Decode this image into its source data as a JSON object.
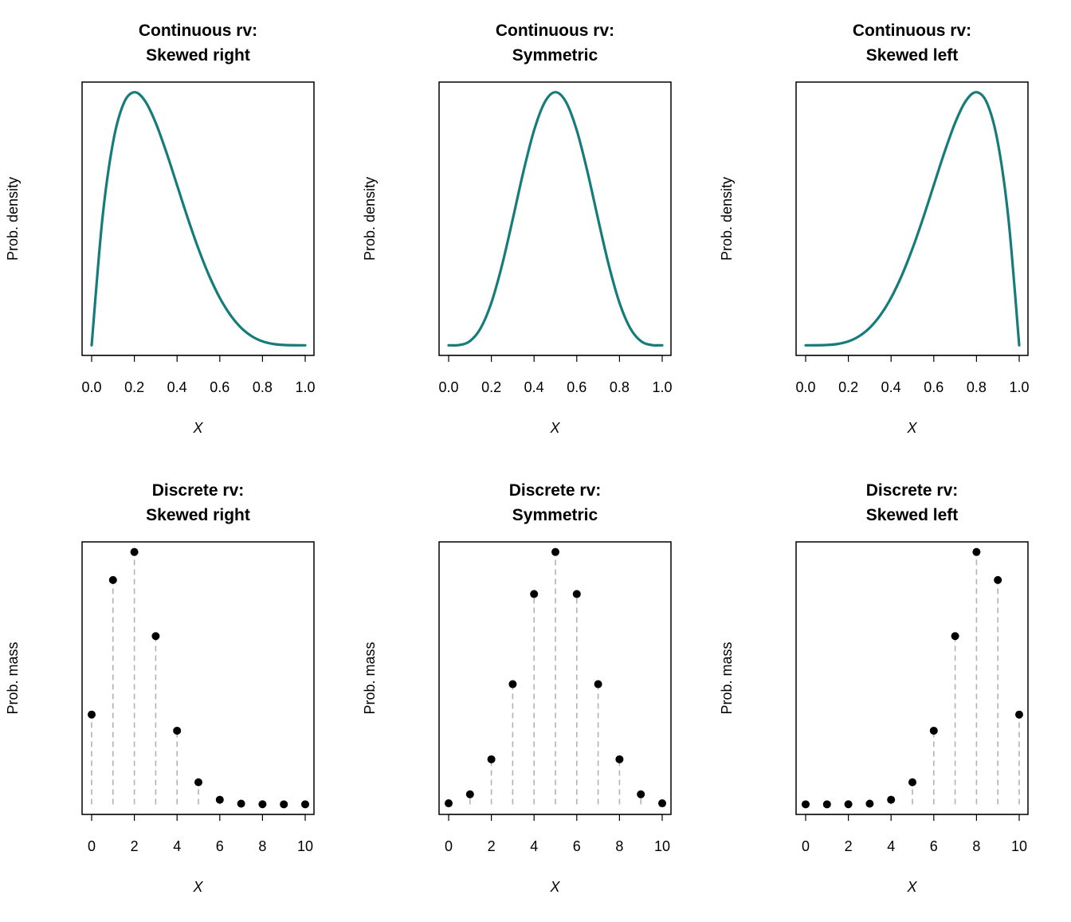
{
  "colors": {
    "curve": "#167c7a",
    "points": "#000000",
    "stems": "#b3b3b3",
    "frame": "#000000"
  },
  "chart_data": [
    {
      "type": "line",
      "title_lines": [
        "Continuous rv:",
        "Skewed right"
      ],
      "xlabel": "X",
      "ylabel": "Prob. density",
      "xlim": [
        0,
        1
      ],
      "xticks": [
        "0.0",
        "0.2",
        "0.4",
        "0.6",
        "0.8",
        "1.0"
      ],
      "y_ticks_shown": false,
      "x": [
        0,
        0.05,
        0.1,
        0.15,
        0.2,
        0.25,
        0.3,
        0.35,
        0.4,
        0.45,
        0.5,
        0.55,
        0.6,
        0.65,
        0.7,
        0.75,
        0.8,
        0.85,
        0.9,
        0.95,
        1
      ],
      "y": [
        0,
        1.222,
        1.968,
        2.349,
        2.458,
        2.373,
        2.161,
        1.874,
        1.555,
        1.235,
        0.938,
        0.677,
        0.461,
        0.293,
        0.17,
        0.088,
        0.038,
        0.013,
        0.003,
        0.0002,
        0
      ]
    },
    {
      "type": "line",
      "title_lines": [
        "Continuous rv:",
        "Symmetric"
      ],
      "xlabel": "X",
      "ylabel": "Prob. density",
      "xlim": [
        0,
        1
      ],
      "xticks": [
        "0.0",
        "0.2",
        "0.4",
        "0.6",
        "0.8",
        "1.0"
      ],
      "y_ticks_shown": false,
      "x": [
        0,
        0.05,
        0.1,
        0.15,
        0.2,
        0.25,
        0.3,
        0.35,
        0.4,
        0.45,
        0.5,
        0.55,
        0.6,
        0.65,
        0.7,
        0.75,
        0.8,
        0.85,
        0.9,
        0.95,
        1
      ],
      "y": [
        0,
        0.003,
        0.041,
        0.167,
        0.413,
        0.779,
        1.225,
        1.688,
        2.09,
        2.364,
        2.461,
        2.364,
        2.09,
        1.688,
        1.225,
        0.779,
        0.413,
        0.167,
        0.041,
        0.003,
        0
      ]
    },
    {
      "type": "line",
      "title_lines": [
        "Continuous rv:",
        "Skewed left"
      ],
      "xlabel": "X",
      "ylabel": "Prob. density",
      "xlim": [
        0,
        1
      ],
      "xticks": [
        "0.0",
        "0.2",
        "0.4",
        "0.6",
        "0.8",
        "1.0"
      ],
      "y_ticks_shown": false,
      "x": [
        0,
        0.05,
        0.1,
        0.15,
        0.2,
        0.25,
        0.3,
        0.35,
        0.4,
        0.45,
        0.5,
        0.55,
        0.6,
        0.65,
        0.7,
        0.75,
        0.8,
        0.85,
        0.9,
        0.95,
        1
      ],
      "y": [
        0,
        0.0002,
        0.003,
        0.013,
        0.038,
        0.088,
        0.17,
        0.293,
        0.461,
        0.677,
        0.938,
        1.235,
        1.555,
        1.874,
        2.161,
        2.373,
        2.458,
        2.349,
        1.968,
        1.222,
        0
      ]
    },
    {
      "type": "scatter",
      "title_lines": [
        "Discrete rv:",
        "Skewed right"
      ],
      "xlabel": "X",
      "ylabel": "Prob. mass",
      "xlim": [
        0,
        10
      ],
      "xticks": [
        "0",
        "2",
        "4",
        "6",
        "8",
        "10"
      ],
      "y_ticks_shown": false,
      "x": [
        0,
        1,
        2,
        3,
        4,
        5,
        6,
        7,
        8,
        9,
        10
      ],
      "y": [
        0.1074,
        0.2684,
        0.302,
        0.2013,
        0.0881,
        0.0264,
        0.0055,
        0.0008,
        0.0001,
        0.0,
        0.0
      ]
    },
    {
      "type": "scatter",
      "title_lines": [
        "Discrete rv:",
        "Symmetric"
      ],
      "xlabel": "X",
      "ylabel": "Prob. mass",
      "xlim": [
        0,
        10
      ],
      "xticks": [
        "0",
        "2",
        "4",
        "6",
        "8",
        "10"
      ],
      "y_ticks_shown": false,
      "x": [
        0,
        1,
        2,
        3,
        4,
        5,
        6,
        7,
        8,
        9,
        10
      ],
      "y": [
        0.001,
        0.0098,
        0.0439,
        0.1172,
        0.2051,
        0.2461,
        0.2051,
        0.1172,
        0.0439,
        0.0098,
        0.001
      ]
    },
    {
      "type": "scatter",
      "title_lines": [
        "Discrete rv:",
        "Skewed left"
      ],
      "xlabel": "X",
      "ylabel": "Prob. mass",
      "xlim": [
        0,
        10
      ],
      "xticks": [
        "0",
        "2",
        "4",
        "6",
        "8",
        "10"
      ],
      "y_ticks_shown": false,
      "x": [
        0,
        1,
        2,
        3,
        4,
        5,
        6,
        7,
        8,
        9,
        10
      ],
      "y": [
        0.0,
        0.0,
        0.0001,
        0.0008,
        0.0055,
        0.0264,
        0.0881,
        0.2013,
        0.302,
        0.2684,
        0.1074
      ]
    }
  ]
}
